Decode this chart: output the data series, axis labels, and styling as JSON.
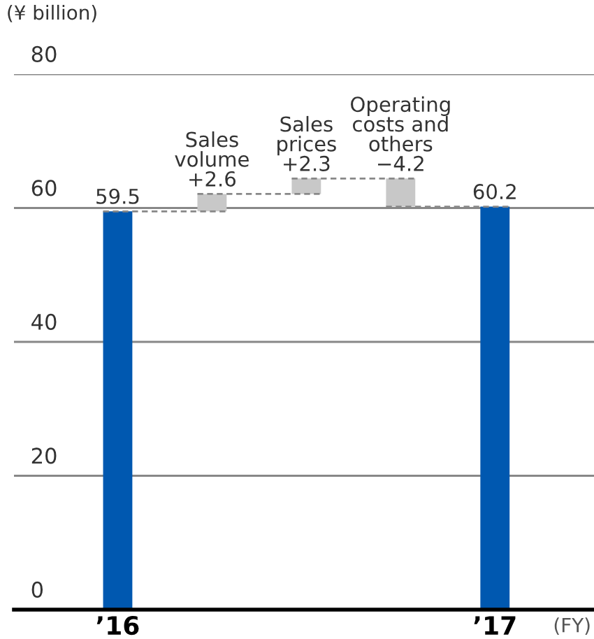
{
  "chart_data": {
    "type": "bar",
    "ylabel": "(¥ billion)",
    "xlabel": "(FY)",
    "categories": [
      "’16",
      "Sales\nvolume",
      "Sales\nprices",
      "Operating\ncosts and\nothers",
      "’17"
    ],
    "values": [
      59.5,
      2.6,
      2.3,
      -4.2,
      60.2
    ],
    "base": [
      null,
      59.5,
      62.1,
      64.4,
      null
    ],
    "colors": [
      "#0058b0",
      "#c8c8c8",
      "#c8c8c8",
      "#c8c8c8",
      "#0058b0"
    ],
    "value_labels": [
      "59.5",
      "+2.6",
      "+2.3",
      "−4.2",
      "60.2"
    ],
    "ylim": [
      0,
      80
    ],
    "yticks": [
      0,
      20,
      40,
      60,
      80
    ],
    "grid": "y",
    "legend": false
  }
}
